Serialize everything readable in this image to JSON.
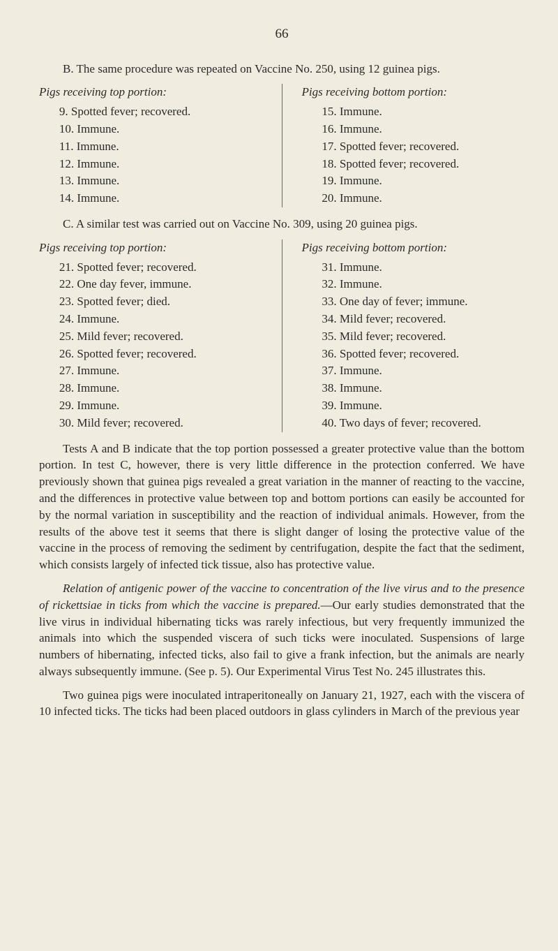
{
  "page_number": "66",
  "intro_b": "B. The same procedure was repeated on Vaccine No. 250, using 12 guinea pigs.",
  "experiment_b": {
    "left": {
      "heading": "Pigs receiving top portion:",
      "items": [
        "9. Spotted fever; recovered.",
        "10. Immune.",
        "11. Immune.",
        "12. Immune.",
        "13. Immune.",
        "14. Immune."
      ]
    },
    "right": {
      "heading": "Pigs receiving bottom portion:",
      "items": [
        "15. Immune.",
        "16. Immune.",
        "17. Spotted fever; recovered.",
        "18. Spotted fever; recovered.",
        "19. Immune.",
        "20. Immune."
      ]
    }
  },
  "intro_c": "C. A similar test was carried out on Vaccine No. 309, using 20 guinea pigs.",
  "experiment_c": {
    "left": {
      "heading": "Pigs receiving top portion:",
      "items": [
        "21. Spotted fever; recovered.",
        "22. One day fever, immune.",
        "23. Spotted fever; died.",
        "24. Immune.",
        "25. Mild fever; recovered.",
        "26. Spotted fever; recovered.",
        "27. Immune.",
        "28. Immune.",
        "29. Immune.",
        "30. Mild fever; recovered."
      ]
    },
    "right": {
      "heading": "Pigs receiving bottom portion:",
      "items": [
        "31. Immune.",
        "32. Immune.",
        "33. One day of fever; immune.",
        "34. Mild fever; recovered.",
        "35. Mild fever; recovered.",
        "36. Spotted fever; recovered.",
        "37. Immune.",
        "38. Immune.",
        "39. Immune.",
        "40. Two days of fever; recovered."
      ]
    }
  },
  "body1": "Tests A and B indicate that the top portion possessed a greater protective value than the bottom portion. In test C, however, there is very little difference in the protection conferred. We have previously shown that guinea pigs revealed a great variation in the manner of reacting to the vaccine, and the differences in protective value between top and bottom portions can easily be accounted for by the normal variation in susceptibility and the reaction of individual animals. However, from the results of the above test it seems that there is slight danger of losing the protective value of the vaccine in the process of removing the sediment by centrifugation, despite the fact that the sediment, which consists largely of infected tick tissue, also has protective value.",
  "body2_italic_lead": "Relation of antigenic power of the vaccine to concentration of the live virus and to the presence of rickettsiae in ticks from which the vaccine is prepared.",
  "body2_rest": "—Our early studies demonstrated that the live virus in individual hibernating ticks was rarely infectious, but very frequently immunized the animals into which the suspended viscera of such ticks were inoculated. Suspensions of large numbers of hibernating, infected ticks, also fail to give a frank infection, but the animals are nearly always subsequently immune. (See p. 5). Our Experimental Virus Test No. 245 illustrates this.",
  "body3": "Two guinea pigs were inoculated intraperitoneally on January 21, 1927, each with the viscera of 10 infected ticks. The ticks had been placed outdoors in glass cylinders in March of the previous year"
}
